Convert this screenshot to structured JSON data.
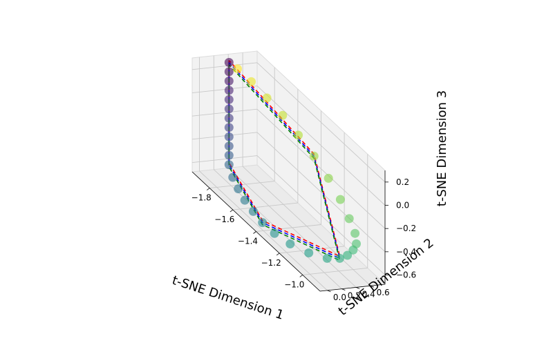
{
  "chart_data": {
    "type": "scatter",
    "projection": "3d",
    "xlabel": "t-SNE Dimension 1",
    "ylabel": "t-SNE Dimension 2",
    "zlabel": "t-SNE Dimension 3",
    "xlim": [
      -1.95,
      -0.85
    ],
    "ylim": [
      -0.1,
      0.8
    ],
    "zlim": [
      -0.68,
      0.3
    ],
    "x_ticks": [
      "−1.8",
      "−1.6",
      "−1.4",
      "−1.2",
      "−1.0"
    ],
    "x_tick_values": [
      -1.8,
      -1.6,
      -1.4,
      -1.2,
      -1.0
    ],
    "y_ticks": [
      "0.0",
      "0.2",
      "0.4",
      "0.6"
    ],
    "y_tick_values": [
      0.0,
      0.2,
      0.4,
      0.6
    ],
    "z_ticks": [
      "0.2",
      "0.0",
      "−0.2",
      "−0.4",
      "−0.6"
    ],
    "z_tick_values": [
      0.2,
      0.0,
      -0.2,
      -0.4,
      -0.6
    ],
    "colormap": "viridis",
    "grid": true,
    "marker_alpha": 0.6,
    "series": [
      {
        "kind": "points",
        "description": "trajectory points, color encodes sequence order",
        "points": [
          [
            -1.9,
            0.33,
            0.28
          ],
          [
            -1.9,
            0.33,
            0.2
          ],
          [
            -1.9,
            0.33,
            0.12
          ],
          [
            -1.9,
            0.33,
            0.04
          ],
          [
            -1.9,
            0.33,
            -0.04
          ],
          [
            -1.9,
            0.33,
            -0.12
          ],
          [
            -1.9,
            0.33,
            -0.2
          ],
          [
            -1.9,
            0.33,
            -0.28
          ],
          [
            -1.9,
            0.33,
            -0.36
          ],
          [
            -1.9,
            0.33,
            -0.44
          ],
          [
            -1.9,
            0.33,
            -0.52
          ],
          [
            -1.9,
            0.33,
            -0.6
          ],
          [
            -1.83,
            0.27,
            -0.64
          ],
          [
            -1.74,
            0.2,
            -0.65
          ],
          [
            -1.64,
            0.13,
            -0.65
          ],
          [
            -1.53,
            0.07,
            -0.64
          ],
          [
            -1.42,
            0.02,
            -0.63
          ],
          [
            -1.31,
            0.01,
            -0.62
          ],
          [
            -1.2,
            0.05,
            -0.61
          ],
          [
            -1.09,
            0.13,
            -0.59
          ],
          [
            -1.0,
            0.24,
            -0.56
          ],
          [
            -0.96,
            0.35,
            -0.53
          ],
          [
            -0.95,
            0.44,
            -0.5
          ],
          [
            -0.95,
            0.52,
            -0.46
          ],
          [
            -0.96,
            0.58,
            -0.42
          ],
          [
            -0.99,
            0.61,
            -0.36
          ],
          [
            -1.04,
            0.61,
            -0.28
          ],
          [
            -1.11,
            0.6,
            -0.18
          ],
          [
            -1.2,
            0.58,
            -0.08
          ],
          [
            -1.3,
            0.54,
            0.02
          ],
          [
            -1.41,
            0.5,
            0.1
          ],
          [
            -1.52,
            0.46,
            0.17
          ],
          [
            -1.63,
            0.42,
            0.22
          ],
          [
            -1.74,
            0.38,
            0.26
          ],
          [
            -1.84,
            0.35,
            0.28
          ]
        ]
      },
      {
        "kind": "line",
        "style": "dashed",
        "color": "#ff0000",
        "points": [
          [
            -1.9,
            0.33,
            0.28
          ],
          [
            -1.9,
            0.33,
            -0.6
          ],
          [
            -1.42,
            0.02,
            -0.63
          ],
          [
            -0.96,
            0.35,
            -0.53
          ],
          [
            -1.3,
            0.54,
            0.02
          ],
          [
            -1.9,
            0.33,
            0.28
          ]
        ]
      },
      {
        "kind": "line",
        "style": "dashed",
        "color": "#0000ff",
        "points": [
          [
            -1.9,
            0.33,
            0.28
          ],
          [
            -1.9,
            0.33,
            -0.6
          ],
          [
            -1.42,
            0.02,
            -0.63
          ],
          [
            -0.96,
            0.35,
            -0.53
          ],
          [
            -1.3,
            0.54,
            0.02
          ],
          [
            -1.9,
            0.33,
            0.28
          ]
        ]
      },
      {
        "kind": "line",
        "style": "dashed",
        "color": "#008000",
        "points": [
          [
            -1.9,
            0.33,
            0.28
          ],
          [
            -1.9,
            0.33,
            -0.6
          ],
          [
            -1.42,
            0.02,
            -0.63
          ],
          [
            -0.96,
            0.35,
            -0.53
          ],
          [
            -1.3,
            0.54,
            0.02
          ],
          [
            -1.9,
            0.33,
            0.28
          ]
        ]
      }
    ]
  }
}
